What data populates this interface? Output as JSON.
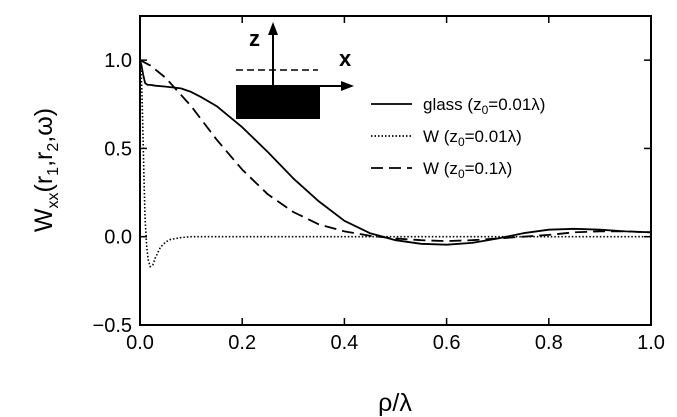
{
  "chart_data": {
    "type": "line",
    "xlabel": "ρ/λ",
    "ylabel": {
      "main": "W",
      "sub": "xx",
      "args": "(r",
      "sub1": "1",
      "mid": ",r",
      "sub2": "2",
      "end": ",ω)"
    },
    "xlim": [
      0.0,
      1.0
    ],
    "ylim": [
      -0.5,
      1.25
    ],
    "xticks": [
      {
        "v": 0.0,
        "label": "0.0"
      },
      {
        "v": 0.2,
        "label": "0.2"
      },
      {
        "v": 0.4,
        "label": "0.4"
      },
      {
        "v": 0.6,
        "label": "0.6"
      },
      {
        "v": 0.8,
        "label": "0.8"
      },
      {
        "v": 1.0,
        "label": "1.0"
      }
    ],
    "yticks": [
      {
        "v": -0.5,
        "label": "−0.5"
      },
      {
        "v": 0.0,
        "label": "0.0"
      },
      {
        "v": 0.5,
        "label": "0.5"
      },
      {
        "v": 1.0,
        "label": "1.0"
      }
    ],
    "grid": false,
    "legend_position": "right",
    "series": [
      {
        "name": "glass (z₀=0.01λ)",
        "legend": {
          "pre": "glass (z",
          "sub": "0",
          "post": "=0.01λ)"
        },
        "style": "solid",
        "x": [
          0.0,
          0.003,
          0.006,
          0.01,
          0.015,
          0.02,
          0.03,
          0.05,
          0.08,
          0.1,
          0.12,
          0.15,
          0.2,
          0.25,
          0.3,
          0.35,
          0.4,
          0.45,
          0.5,
          0.55,
          0.6,
          0.65,
          0.7,
          0.75,
          0.8,
          0.85,
          0.9,
          0.95,
          1.0
        ],
        "y": [
          1.0,
          0.97,
          0.92,
          0.87,
          0.86,
          0.86,
          0.855,
          0.85,
          0.84,
          0.82,
          0.79,
          0.74,
          0.62,
          0.48,
          0.33,
          0.2,
          0.09,
          0.02,
          -0.02,
          -0.04,
          -0.045,
          -0.035,
          -0.01,
          0.02,
          0.04,
          0.045,
          0.04,
          0.03,
          0.025
        ]
      },
      {
        "name": "W (z₀=0.01λ)",
        "legend": {
          "pre": "W (z",
          "sub": "0",
          "post": "=0.01λ)"
        },
        "style": "dotted",
        "x": [
          0.0,
          0.002,
          0.004,
          0.006,
          0.008,
          0.01,
          0.013,
          0.016,
          0.02,
          0.025,
          0.03,
          0.04,
          0.05,
          0.06,
          0.08,
          0.1,
          0.15,
          0.2,
          0.4,
          0.6,
          0.8,
          1.0
        ],
        "y": [
          1.0,
          0.96,
          0.8,
          0.55,
          0.3,
          0.1,
          -0.05,
          -0.13,
          -0.17,
          -0.16,
          -0.12,
          -0.06,
          -0.03,
          -0.015,
          -0.005,
          0.0,
          0.0,
          0.0,
          0.0,
          0.0,
          0.0,
          0.0
        ]
      },
      {
        "name": "W (z₀=0.1λ)",
        "legend": {
          "pre": "W (z",
          "sub": "0",
          "post": "=0.1λ)"
        },
        "style": "dashed",
        "x": [
          0.0,
          0.02,
          0.05,
          0.1,
          0.15,
          0.2,
          0.25,
          0.3,
          0.35,
          0.4,
          0.45,
          0.5,
          0.55,
          0.6,
          0.65,
          0.7,
          0.75,
          0.8,
          0.85,
          0.9,
          0.95,
          1.0
        ],
        "y": [
          1.0,
          0.97,
          0.9,
          0.74,
          0.55,
          0.38,
          0.24,
          0.14,
          0.07,
          0.03,
          0.005,
          -0.01,
          -0.02,
          -0.025,
          -0.02,
          -0.01,
          0.0,
          0.01,
          0.025,
          0.03,
          0.03,
          0.025
        ]
      }
    ],
    "inset": {
      "z_label": "z",
      "x_label": "x"
    }
  }
}
